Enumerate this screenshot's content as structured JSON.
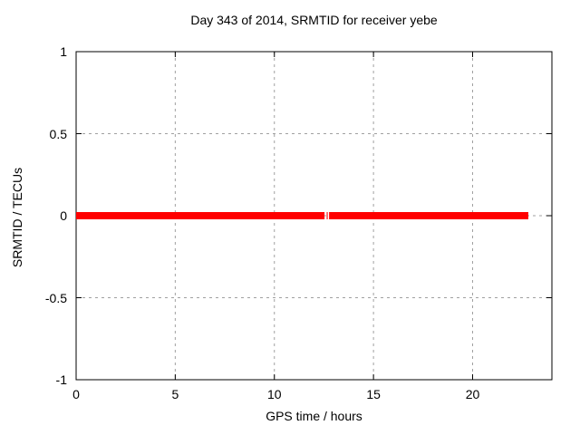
{
  "chart_data": {
    "type": "line",
    "title": "Day 343 of 2014, SRMTID for receiver yebe",
    "xlabel": "GPS time / hours",
    "ylabel": "SRMTID / TECUs",
    "xlim": [
      0,
      24
    ],
    "ylim": [
      -1,
      1
    ],
    "xtick_values": [
      0,
      5,
      10,
      15,
      20
    ],
    "xtick_labels": [
      "0",
      "5",
      "10",
      "15",
      "20"
    ],
    "ytick_values": [
      1,
      0.5,
      0,
      -0.5,
      -1
    ],
    "ytick_labels": [
      "1",
      "0.5",
      "0",
      "-0.5",
      "-1"
    ],
    "grid": true,
    "legend": "none",
    "series": [
      {
        "name": "SRMTID",
        "color": "#ff0000",
        "line_width": 8,
        "y": 0,
        "segments": [
          {
            "x_start": 0,
            "x_end": 12.53
          },
          {
            "x_start": 12.64,
            "x_end": 12.69
          },
          {
            "x_start": 12.76,
            "x_end": 22.81
          }
        ]
      }
    ],
    "colors": {
      "background": "#ffffff",
      "border": "#000000",
      "grid": "#a0a0a0",
      "text": "#000000",
      "series": "#ff0000"
    }
  }
}
